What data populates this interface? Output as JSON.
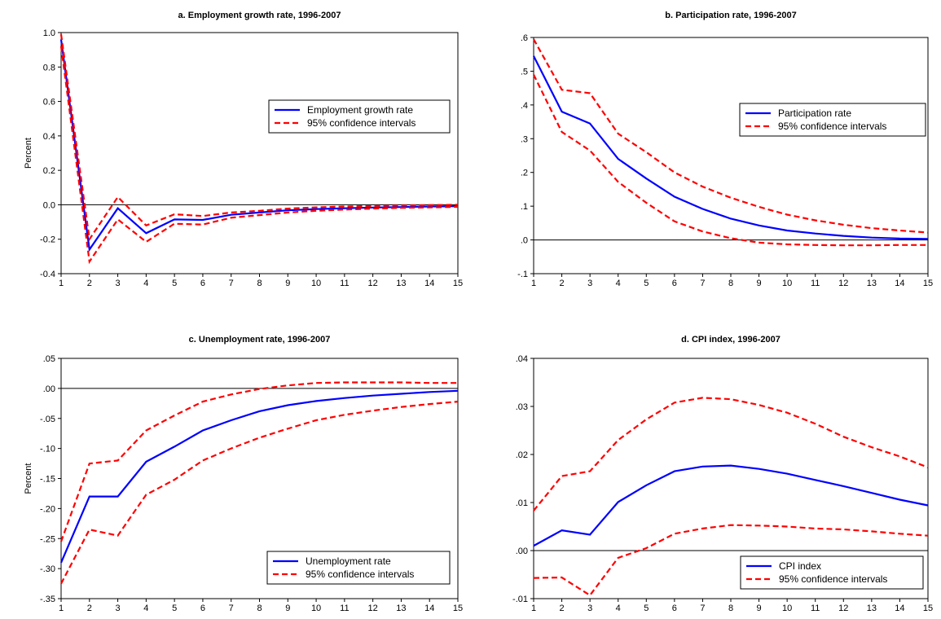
{
  "chart_data": [
    {
      "type": "line",
      "title": "a. Employment growth rate, 1996-2007",
      "ylabel": "Percent",
      "xlabel": "",
      "x": [
        1,
        2,
        3,
        4,
        5,
        6,
        7,
        8,
        9,
        10,
        11,
        12,
        13,
        14,
        15
      ],
      "ylim": [
        -0.4,
        1.0
      ],
      "yticks": [
        -0.4,
        -0.2,
        0.0,
        0.2,
        0.4,
        0.6,
        0.8,
        1.0
      ],
      "ytick_labels": [
        "-0.4",
        "-0.2",
        "0.0",
        "0.2",
        "0.4",
        "0.6",
        "0.8",
        "1.0"
      ],
      "zero_line": true,
      "legend_position": "upper-right",
      "series": [
        {
          "name": "Employment growth rate",
          "style": "solid",
          "color": "#0000ff",
          "values": [
            0.96,
            -0.26,
            -0.02,
            -0.165,
            -0.085,
            -0.088,
            -0.058,
            -0.045,
            -0.032,
            -0.025,
            -0.02,
            -0.016,
            -0.013,
            -0.01,
            -0.008
          ]
        },
        {
          "name": "95% confidence intervals",
          "style": "dashed",
          "color": "#ff0000",
          "values": [
            0.99,
            -0.2,
            0.045,
            -0.12,
            -0.055,
            -0.065,
            -0.045,
            -0.035,
            -0.022,
            -0.015,
            -0.01,
            -0.007,
            -0.004,
            -0.002,
            0.0
          ]
        },
        {
          "name": "",
          "style": "dashed",
          "color": "#ff0000",
          "values": [
            0.92,
            -0.33,
            -0.085,
            -0.215,
            -0.11,
            -0.115,
            -0.075,
            -0.06,
            -0.045,
            -0.035,
            -0.028,
            -0.022,
            -0.018,
            -0.015,
            -0.012
          ]
        }
      ]
    },
    {
      "type": "line",
      "title": "b. Participation rate, 1996-2007",
      "ylabel": "",
      "xlabel": "",
      "x": [
        1,
        2,
        3,
        4,
        5,
        6,
        7,
        8,
        9,
        10,
        11,
        12,
        13,
        14,
        15
      ],
      "ylim": [
        -0.1,
        0.6
      ],
      "yticks": [
        -0.1,
        0.0,
        0.1,
        0.2,
        0.3,
        0.4,
        0.5,
        0.6
      ],
      "ytick_labels": [
        "-.1",
        ".0",
        ".1",
        ".2",
        ".3",
        ".4",
        ".5",
        ".6"
      ],
      "zero_line": true,
      "legend_position": "upper-right",
      "series": [
        {
          "name": "Participation rate",
          "style": "solid",
          "color": "#0000ff",
          "values": [
            0.545,
            0.38,
            0.345,
            0.24,
            0.182,
            0.128,
            0.092,
            0.063,
            0.043,
            0.028,
            0.019,
            0.012,
            0.007,
            0.004,
            0.003
          ]
        },
        {
          "name": "95% confidence intervals",
          "style": "dashed",
          "color": "#ff0000",
          "values": [
            0.595,
            0.445,
            0.435,
            0.315,
            0.26,
            0.2,
            0.158,
            0.125,
            0.098,
            0.075,
            0.058,
            0.045,
            0.035,
            0.028,
            0.022
          ]
        },
        {
          "name": "",
          "style": "dashed",
          "color": "#ff0000",
          "values": [
            0.49,
            0.32,
            0.265,
            0.172,
            0.11,
            0.055,
            0.025,
            0.005,
            -0.008,
            -0.013,
            -0.015,
            -0.016,
            -0.016,
            -0.015,
            -0.015
          ]
        }
      ]
    },
    {
      "type": "line",
      "title": "c. Unemployment rate, 1996-2007",
      "ylabel": "Percent",
      "xlabel": "",
      "x": [
        1,
        2,
        3,
        4,
        5,
        6,
        7,
        8,
        9,
        10,
        11,
        12,
        13,
        14,
        15
      ],
      "ylim": [
        -0.35,
        0.05
      ],
      "yticks": [
        -0.35,
        -0.3,
        -0.25,
        -0.2,
        -0.15,
        -0.1,
        -0.05,
        0.0,
        0.05
      ],
      "ytick_labels": [
        "-.35",
        "-.30",
        "-.25",
        "-.20",
        "-.15",
        "-.10",
        "-.05",
        ".00",
        ".05"
      ],
      "zero_line": true,
      "legend_position": "lower-right",
      "series": [
        {
          "name": "Unemployment rate",
          "style": "solid",
          "color": "#0000ff",
          "values": [
            -0.29,
            -0.18,
            -0.18,
            -0.122,
            -0.097,
            -0.07,
            -0.053,
            -0.038,
            -0.028,
            -0.021,
            -0.016,
            -0.012,
            -0.009,
            -0.006,
            -0.004
          ]
        },
        {
          "name": "95% confidence intervals",
          "style": "dashed",
          "color": "#ff0000",
          "values": [
            -0.255,
            -0.125,
            -0.12,
            -0.07,
            -0.045,
            -0.022,
            -0.01,
            -0.001,
            0.005,
            0.009,
            0.01,
            0.01,
            0.01,
            0.009,
            0.009
          ]
        },
        {
          "name": "",
          "style": "dashed",
          "color": "#ff0000",
          "values": [
            -0.325,
            -0.235,
            -0.245,
            -0.177,
            -0.152,
            -0.12,
            -0.1,
            -0.082,
            -0.067,
            -0.053,
            -0.044,
            -0.037,
            -0.031,
            -0.026,
            -0.022
          ]
        }
      ]
    },
    {
      "type": "line",
      "title": "d. CPI index, 1996-2007",
      "ylabel": "",
      "xlabel": "",
      "x": [
        1,
        2,
        3,
        4,
        5,
        6,
        7,
        8,
        9,
        10,
        11,
        12,
        13,
        14,
        15
      ],
      "ylim": [
        -0.01,
        0.04
      ],
      "yticks": [
        -0.01,
        0.0,
        0.01,
        0.02,
        0.03,
        0.04
      ],
      "ytick_labels": [
        "-.01",
        ".00",
        ".01",
        ".02",
        ".03",
        ".04"
      ],
      "zero_line": true,
      "legend_position": "lower-right",
      "series": [
        {
          "name": "CPI index",
          "style": "solid",
          "color": "#0000ff",
          "values": [
            0.001,
            0.0042,
            0.0033,
            0.0101,
            0.0136,
            0.0165,
            0.0175,
            0.0177,
            0.017,
            0.016,
            0.0147,
            0.0134,
            0.012,
            0.0106,
            0.0094
          ]
        },
        {
          "name": "95% confidence intervals",
          "style": "dashed",
          "color": "#ff0000",
          "values": [
            0.0083,
            0.0155,
            0.0165,
            0.023,
            0.0273,
            0.0308,
            0.0318,
            0.0315,
            0.0303,
            0.0287,
            0.0264,
            0.0237,
            0.0215,
            0.0196,
            0.0173
          ]
        },
        {
          "name": "",
          "style": "dashed",
          "color": "#ff0000",
          "values": [
            -0.0057,
            -0.0056,
            -0.0093,
            -0.0015,
            0.0005,
            0.0035,
            0.0046,
            0.0053,
            0.0052,
            0.005,
            0.0046,
            0.0044,
            0.004,
            0.0035,
            0.0031
          ]
        }
      ]
    }
  ]
}
